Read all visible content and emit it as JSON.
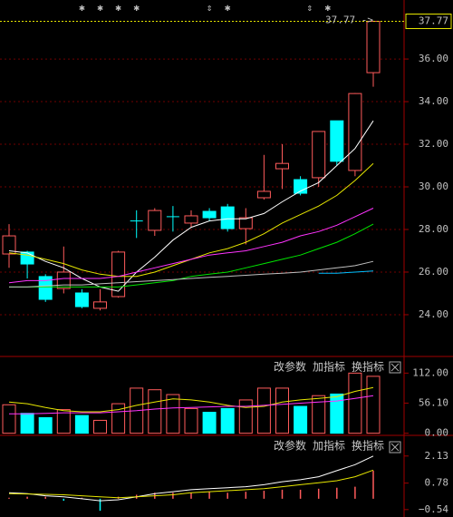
{
  "chart_data": [
    {
      "type": "candlestick",
      "open": [
        26.85,
        26.94,
        25.79,
        25.23,
        25.02,
        24.3,
        24.85,
        28.4,
        27.96,
        28.6,
        28.3,
        28.85,
        29.06,
        28.04,
        29.49,
        30.85,
        30.34,
        30.43,
        33.1,
        30.77,
        35.36
      ],
      "high": [
        28.25,
        27.0,
        25.9,
        27.2,
        25.2,
        25.2,
        27.0,
        28.9,
        29.0,
        29.1,
        28.9,
        29.0,
        29.2,
        29.0,
        31.5,
        32.0,
        30.5,
        32.6,
        33.1,
        34.4,
        37.77
      ],
      "low": [
        26.2,
        25.7,
        24.6,
        25.0,
        24.3,
        24.2,
        24.8,
        27.6,
        27.7,
        27.9,
        28.1,
        28.4,
        27.9,
        27.3,
        29.4,
        29.9,
        29.6,
        30.0,
        31.0,
        30.5,
        34.7
      ],
      "close": [
        27.7,
        26.38,
        24.72,
        26.0,
        24.38,
        24.6,
        26.94,
        28.4,
        28.89,
        28.6,
        28.64,
        28.55,
        28.04,
        28.55,
        29.79,
        31.1,
        29.7,
        32.6,
        31.2,
        34.38,
        37.77
      ],
      "up_color": "#ff5b5b",
      "down_color": "#00ffff",
      "lines": [
        {
          "color": "#ffffff",
          "values": [
            27.0,
            26.9,
            26.5,
            26.2,
            25.7,
            25.3,
            25.1,
            26.0,
            26.7,
            27.5,
            28.1,
            28.4,
            28.5,
            28.5,
            28.75,
            29.3,
            29.8,
            30.2,
            31.0,
            31.8,
            33.1
          ]
        },
        {
          "color": "#e6e600",
          "values": [
            26.9,
            26.8,
            26.6,
            26.4,
            26.1,
            25.9,
            25.8,
            25.8,
            26.0,
            26.3,
            26.6,
            26.9,
            27.1,
            27.4,
            27.8,
            28.3,
            28.7,
            29.1,
            29.6,
            30.3,
            31.1
          ]
        },
        {
          "color": "#ff33ff",
          "values": [
            25.5,
            25.6,
            25.6,
            25.7,
            25.7,
            25.7,
            25.8,
            26.0,
            26.2,
            26.4,
            26.6,
            26.8,
            26.9,
            27.0,
            27.2,
            27.4,
            27.7,
            27.9,
            28.2,
            28.6,
            29.0
          ]
        },
        {
          "color": "#00e600",
          "values": [
            25.3,
            25.3,
            25.3,
            25.3,
            25.3,
            25.3,
            25.3,
            25.4,
            25.5,
            25.6,
            25.8,
            25.9,
            26.0,
            26.2,
            26.4,
            26.6,
            26.8,
            27.1,
            27.4,
            27.8,
            28.25
          ]
        },
        {
          "color": "#c0c0c0",
          "values": [
            25.3,
            25.3,
            25.35,
            25.4,
            25.4,
            25.45,
            25.5,
            25.55,
            25.6,
            25.65,
            25.7,
            25.75,
            25.8,
            25.85,
            25.9,
            25.95,
            26.0,
            26.1,
            26.2,
            26.3,
            26.5
          ]
        },
        {
          "color": "#00c0ff",
          "values": [
            null,
            null,
            null,
            null,
            null,
            null,
            null,
            null,
            null,
            null,
            null,
            null,
            null,
            null,
            null,
            null,
            null,
            25.95,
            25.95,
            26.0,
            26.05
          ]
        }
      ],
      "ylim": [
        22.04,
        38.77
      ],
      "yticks": [
        {
          "value": 24,
          "label": "24.00"
        },
        {
          "value": 26,
          "label": "26.00"
        },
        {
          "value": 28,
          "label": "28.00"
        },
        {
          "value": 30,
          "label": "30.00"
        },
        {
          "value": 32,
          "label": "32.00"
        },
        {
          "value": 34,
          "label": "34.00"
        },
        {
          "value": 36,
          "label": "36.00"
        }
      ],
      "grid": true,
      "last_price": 37.77,
      "last_price_label": "37.77 ->",
      "markers": [
        {
          "index": 4,
          "label": "✱"
        },
        {
          "index": 5,
          "label": "✱"
        },
        {
          "index": 6,
          "label": "✱"
        },
        {
          "index": 7,
          "label": "✱"
        },
        {
          "index": 11,
          "label": "⇕"
        },
        {
          "index": 12,
          "label": "✱"
        },
        {
          "index": 16.5,
          "label": "⇕"
        },
        {
          "index": 17.5,
          "label": "✱"
        }
      ]
    },
    {
      "type": "volume",
      "values": [
        53,
        37,
        29,
        44,
        33,
        24,
        55,
        84,
        81,
        72,
        46,
        39,
        46,
        62,
        84,
        84,
        50,
        70,
        73,
        112,
        106
      ],
      "lines": [
        {
          "color": "#e6e600",
          "values": [
            58,
            55,
            48,
            42,
            40,
            40,
            44,
            52,
            58,
            64,
            62,
            58,
            52,
            48,
            50,
            58,
            62,
            65,
            68,
            78,
            85
          ]
        },
        {
          "color": "#ff33ff",
          "values": [
            36,
            36,
            37,
            38,
            38,
            38,
            40,
            42,
            45,
            47,
            48,
            49,
            50,
            50,
            52,
            54,
            56,
            58,
            60,
            65,
            70
          ]
        }
      ],
      "ylim": [
        -4,
        143
      ],
      "yticks": [
        {
          "value": 0,
          "label": "0.00"
        },
        {
          "value": 56.1,
          "label": "56.10"
        },
        {
          "value": 112,
          "label": "112.00"
        }
      ],
      "menu": [
        "改参数",
        "加指标",
        "换指标"
      ]
    },
    {
      "type": "macd",
      "values": [
        0.05,
        0.1,
        0.1,
        -0.1,
        0.05,
        -0.6,
        0.1,
        0.2,
        0.3,
        0.3,
        0.3,
        0.35,
        0.3,
        0.35,
        0.4,
        0.45,
        0.45,
        0.5,
        0.55,
        0.6,
        1.4
      ],
      "up_color": "#ff5b5b",
      "down_color": "#00ffff",
      "lines": [
        {
          "color": "#ffffff",
          "values": [
            0.3,
            0.25,
            0.15,
            0.1,
            0.0,
            -0.1,
            -0.05,
            0.1,
            0.25,
            0.35,
            0.45,
            0.5,
            0.55,
            0.6,
            0.7,
            0.85,
            0.95,
            1.1,
            1.4,
            1.7,
            2.13
          ]
        },
        {
          "color": "#e6e600",
          "values": [
            0.25,
            0.24,
            0.22,
            0.2,
            0.15,
            0.1,
            0.05,
            0.1,
            0.15,
            0.2,
            0.3,
            0.35,
            0.4,
            0.45,
            0.5,
            0.6,
            0.7,
            0.8,
            0.9,
            1.1,
            1.43
          ]
        }
      ],
      "ylim": [
        -0.91,
        3.16
      ],
      "yticks": [
        {
          "value": -0.54,
          "label": "−0.54"
        },
        {
          "value": 0.78,
          "label": "0.78"
        },
        {
          "value": 2.13,
          "label": "2.13"
        }
      ],
      "menu": [
        "改参数",
        "加指标",
        "换指标"
      ]
    }
  ]
}
